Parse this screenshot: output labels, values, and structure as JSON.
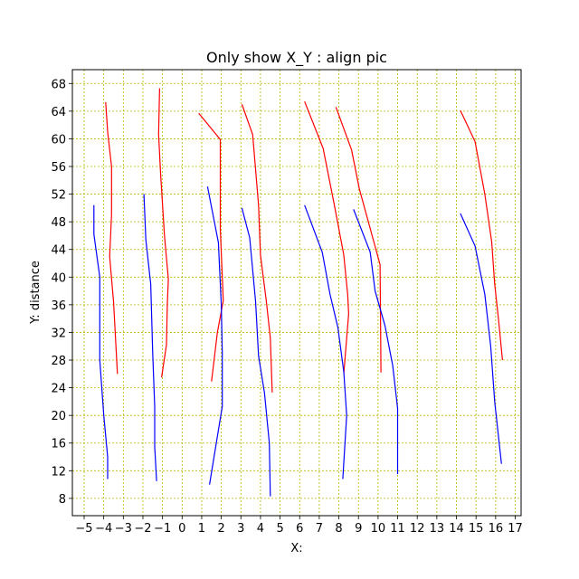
{
  "chart_data": {
    "type": "line",
    "title": "Only show X_Y : align pic",
    "xlabel": "X:",
    "ylabel": "Y: distance",
    "xlim": [
      -5.6,
      17.3
    ],
    "ylim": [
      5.5,
      70
    ],
    "xticks": [
      -5,
      -4,
      -3,
      -2,
      -1,
      0,
      1,
      2,
      3,
      4,
      5,
      6,
      7,
      8,
      9,
      10,
      11,
      12,
      13,
      14,
      15,
      16,
      17
    ],
    "yticks": [
      8,
      12,
      16,
      20,
      24,
      28,
      32,
      36,
      40,
      44,
      48,
      52,
      56,
      60,
      64,
      68
    ],
    "grid": true,
    "grid_color": "#b5b500",
    "colors": {
      "red": "#ff0000",
      "blue": "#0000ff"
    },
    "series": [
      {
        "color": "#ff0000",
        "points": [
          [
            -3.9,
            65.3
          ],
          [
            -3.8,
            61
          ],
          [
            -3.6,
            56
          ],
          [
            -3.6,
            49
          ],
          [
            -3.7,
            43
          ],
          [
            -3.5,
            36.5
          ],
          [
            -3.3,
            26
          ]
        ]
      },
      {
        "color": "#0000ff",
        "points": [
          [
            -4.5,
            50.4
          ],
          [
            -4.5,
            46.2
          ],
          [
            -4.2,
            40
          ],
          [
            -4.2,
            34
          ],
          [
            -4.2,
            28
          ],
          [
            -4,
            20
          ],
          [
            -3.8,
            14
          ],
          [
            -3.8,
            10.8
          ]
        ]
      },
      {
        "color": "#ff0000",
        "points": [
          [
            -1.15,
            67.3
          ],
          [
            -1.2,
            60.7
          ],
          [
            -1.1,
            55
          ],
          [
            -0.9,
            46
          ],
          [
            -0.7,
            39.7
          ],
          [
            -0.75,
            36.3
          ],
          [
            -0.8,
            30.2
          ],
          [
            -1.05,
            25.5
          ]
        ]
      },
      {
        "color": "#0000ff",
        "points": [
          [
            -1.95,
            52
          ],
          [
            -1.85,
            45.4
          ],
          [
            -1.6,
            39
          ],
          [
            -1.5,
            29
          ],
          [
            -1.4,
            21.3
          ],
          [
            -1.4,
            15.5
          ],
          [
            -1.3,
            10.5
          ]
        ]
      },
      {
        "color": "#ff0000",
        "points": [
          [
            0.85,
            63.7
          ],
          [
            1.95,
            59.9
          ],
          [
            1.95,
            47
          ],
          [
            2.1,
            36.6
          ],
          [
            1.8,
            32
          ],
          [
            1.5,
            24.9
          ]
        ]
      },
      {
        "color": "#0000ff",
        "points": [
          [
            1.3,
            53.1
          ],
          [
            1.85,
            45
          ],
          [
            2,
            36
          ],
          [
            2.05,
            29
          ],
          [
            2.05,
            21.3
          ],
          [
            1.4,
            10
          ]
        ]
      },
      {
        "color": "#ff0000",
        "points": [
          [
            3.05,
            65
          ],
          [
            3.6,
            60.6
          ],
          [
            3.9,
            50.4
          ],
          [
            4,
            43.2
          ],
          [
            4.3,
            36.5
          ],
          [
            4.5,
            31.2
          ],
          [
            4.6,
            23.3
          ]
        ]
      },
      {
        "color": "#0000ff",
        "points": [
          [
            3.05,
            50
          ],
          [
            3.45,
            45.7
          ],
          [
            3.75,
            36.5
          ],
          [
            3.9,
            28.6
          ],
          [
            4.2,
            23.3
          ],
          [
            4.45,
            16
          ],
          [
            4.5,
            8.3
          ]
        ]
      },
      {
        "color": "#ff0000",
        "points": [
          [
            6.25,
            65.4
          ],
          [
            7.2,
            58.6
          ],
          [
            7.8,
            50
          ],
          [
            8.25,
            43.2
          ],
          [
            8.45,
            37.5
          ],
          [
            8.5,
            34.7
          ],
          [
            8.25,
            26
          ]
        ]
      },
      {
        "color": "#0000ff",
        "points": [
          [
            6.25,
            50.4
          ],
          [
            7.15,
            43.6
          ],
          [
            7.55,
            37.5
          ],
          [
            7.95,
            32.7
          ],
          [
            8.25,
            26.3
          ],
          [
            8.4,
            20
          ],
          [
            8.2,
            10.8
          ]
        ]
      },
      {
        "color": "#ff0000",
        "points": [
          [
            7.85,
            64.6
          ],
          [
            8.65,
            58.4
          ],
          [
            9.05,
            52.7
          ],
          [
            9.65,
            46.5
          ],
          [
            10.1,
            41.8
          ],
          [
            10.15,
            26.2
          ]
        ]
      },
      {
        "color": "#0000ff",
        "points": [
          [
            8.75,
            49.8
          ],
          [
            9.6,
            43.6
          ],
          [
            9.85,
            38
          ],
          [
            10.35,
            33
          ],
          [
            10.75,
            27.2
          ],
          [
            11,
            21
          ],
          [
            11,
            11.5
          ]
        ]
      },
      {
        "color": "#ff0000",
        "points": [
          [
            14.2,
            64.1
          ],
          [
            14.95,
            59.6
          ],
          [
            15.45,
            52
          ],
          [
            15.8,
            45.1
          ],
          [
            15.95,
            39
          ],
          [
            16.15,
            33.8
          ],
          [
            16.35,
            28
          ]
        ]
      },
      {
        "color": "#0000ff",
        "points": [
          [
            14.2,
            49.2
          ],
          [
            14.95,
            44.5
          ],
          [
            15.45,
            37.5
          ],
          [
            15.75,
            30
          ],
          [
            15.95,
            22
          ],
          [
            16.3,
            13
          ]
        ]
      }
    ]
  }
}
